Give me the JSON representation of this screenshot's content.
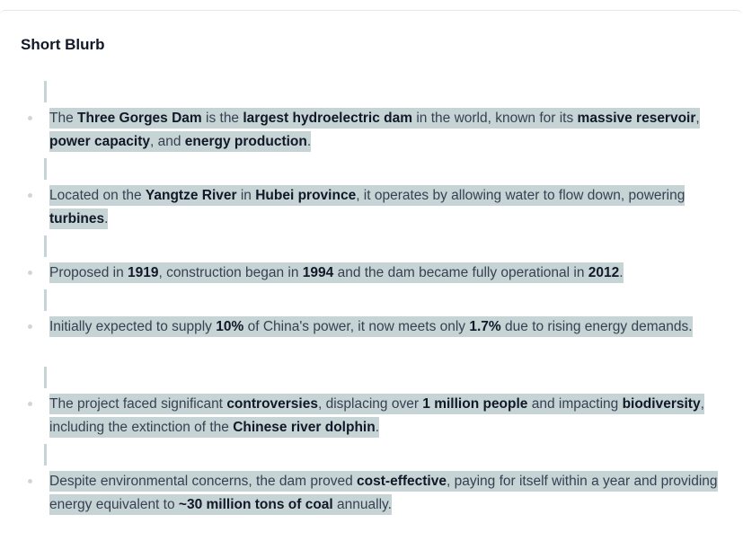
{
  "section": {
    "title": "Short Blurb"
  },
  "items": [
    {
      "segments": [
        {
          "t": "The ",
          "b": false
        },
        {
          "t": "Three Gorges Dam",
          "b": true
        },
        {
          "t": " is the ",
          "b": false
        },
        {
          "t": "largest hydroelectric dam",
          "b": true
        },
        {
          "t": " in the world, known for its ",
          "b": false
        },
        {
          "t": "massive reservoir",
          "b": true
        },
        {
          "t": ", ",
          "b": false
        },
        {
          "t": "power capacity",
          "b": true
        },
        {
          "t": ", and ",
          "b": false
        },
        {
          "t": "energy production",
          "b": true
        },
        {
          "t": ".",
          "b": false
        }
      ]
    },
    {
      "segments": [
        {
          "t": "Located on the ",
          "b": false
        },
        {
          "t": "Yangtze River",
          "b": true
        },
        {
          "t": " in ",
          "b": false
        },
        {
          "t": "Hubei province",
          "b": true
        },
        {
          "t": ", it operates by allowing water to flow down, powering ",
          "b": false
        },
        {
          "t": "turbines",
          "b": true
        },
        {
          "t": ".",
          "b": false
        }
      ]
    },
    {
      "segments": [
        {
          "t": "Proposed in ",
          "b": false
        },
        {
          "t": "1919",
          "b": true
        },
        {
          "t": ", construction began in ",
          "b": false
        },
        {
          "t": "1994",
          "b": true
        },
        {
          "t": " and the dam became fully operational in ",
          "b": false
        },
        {
          "t": "2012",
          "b": true
        },
        {
          "t": ".",
          "b": false
        }
      ]
    },
    {
      "segments": [
        {
          "t": "Initially expected to supply ",
          "b": false
        },
        {
          "t": "10%",
          "b": true
        },
        {
          "t": " of China's power, it now meets only ",
          "b": false
        },
        {
          "t": "1.7%",
          "b": true
        },
        {
          "t": " due to rising energy demands.",
          "b": false
        }
      ]
    },
    {
      "segments": [
        {
          "t": "The project faced significant ",
          "b": false
        },
        {
          "t": "controversies",
          "b": true
        },
        {
          "t": ", displacing over ",
          "b": false
        },
        {
          "t": "1 million people",
          "b": true
        },
        {
          "t": " and impacting ",
          "b": false
        },
        {
          "t": "biodiversity",
          "b": true
        },
        {
          "t": ", including the extinction of the ",
          "b": false
        },
        {
          "t": "Chinese river dolphin",
          "b": true
        },
        {
          "t": ".",
          "b": false
        }
      ]
    },
    {
      "segments": [
        {
          "t": "Despite environmental concerns, the dam proved ",
          "b": false
        },
        {
          "t": "cost-effective",
          "b": true
        },
        {
          "t": ", paying for itself within a year and providing energy equivalent to ",
          "b": false
        },
        {
          "t": "~30 million tons of coal",
          "b": true
        },
        {
          "t": " annually.",
          "b": false
        }
      ]
    }
  ]
}
